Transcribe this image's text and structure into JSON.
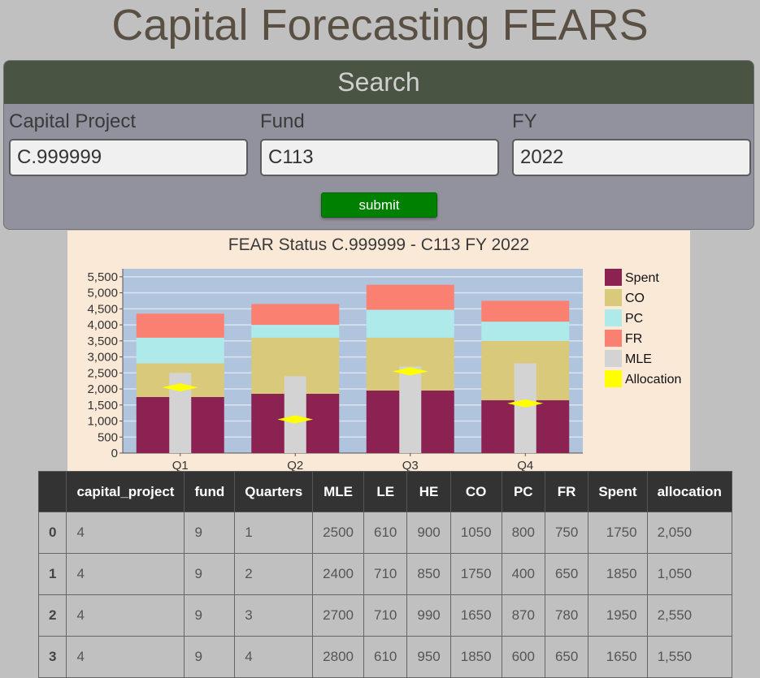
{
  "page": {
    "title": "Capital Forecasting FEARS"
  },
  "search": {
    "header": "Search",
    "fields": [
      {
        "label": "Capital Project",
        "value": "C.999999"
      },
      {
        "label": "Fund",
        "value": "C113"
      },
      {
        "label": "FY",
        "value": "2022"
      }
    ],
    "submit_label": "submit",
    "submit_color": "#008000"
  },
  "chart_data": {
    "type": "bar",
    "title": "FEAR Status C.999999 - C113 FY 2022",
    "categories": [
      "Q1",
      "Q2",
      "Q3",
      "Q4"
    ],
    "ylim": [
      0,
      5750
    ],
    "yticks": [
      "0",
      "500",
      "1,000",
      "1,500",
      "2,000",
      "2,500",
      "3,000",
      "3,500",
      "4,000",
      "4,500",
      "5,000",
      "5,500"
    ],
    "ytick_values": [
      0,
      500,
      1000,
      1500,
      2000,
      2500,
      3000,
      3500,
      4000,
      4500,
      5000,
      5500
    ],
    "stacked_series": [
      {
        "name": "Spent",
        "values": [
          1750,
          1850,
          1950,
          1650
        ],
        "color": "#8b2252"
      },
      {
        "name": "CO",
        "values": [
          1050,
          1750,
          1650,
          1850
        ],
        "color": "#d9c97a"
      },
      {
        "name": "PC",
        "values": [
          800,
          400,
          870,
          600
        ],
        "color": "#afeaea"
      },
      {
        "name": "FR",
        "values": [
          750,
          650,
          780,
          650
        ],
        "color": "#fa8072"
      }
    ],
    "mle": {
      "name": "MLE",
      "values": [
        2500,
        2400,
        2700,
        2800
      ],
      "color": "#d3d3d3"
    },
    "allocation": {
      "name": "Allocation",
      "values": [
        2050,
        1050,
        2550,
        1550
      ],
      "color": "#ffff00"
    },
    "legend": [
      "Spent",
      "CO",
      "PC",
      "FR",
      "MLE",
      "Allocation"
    ],
    "legend_placement": "right",
    "grid": true,
    "plot_background": "#b0c4de"
  },
  "table": {
    "columns": [
      "",
      "capital_project",
      "fund",
      "Quarters",
      "MLE",
      "LE",
      "HE",
      "CO",
      "PC",
      "FR",
      "Spent",
      "allocation"
    ],
    "rows": [
      [
        "0",
        "4",
        "9",
        "1",
        "2500",
        "610",
        "900",
        "1050",
        "800",
        "750",
        "1750",
        "2,050"
      ],
      [
        "1",
        "4",
        "9",
        "2",
        "2400",
        "710",
        "850",
        "1750",
        "400",
        "650",
        "1850",
        "1,050"
      ],
      [
        "2",
        "4",
        "9",
        "3",
        "2700",
        "710",
        "990",
        "1650",
        "870",
        "780",
        "1950",
        "2,550"
      ],
      [
        "3",
        "4",
        "9",
        "4",
        "2800",
        "610",
        "950",
        "1850",
        "600",
        "650",
        "1650",
        "1,550"
      ]
    ]
  }
}
